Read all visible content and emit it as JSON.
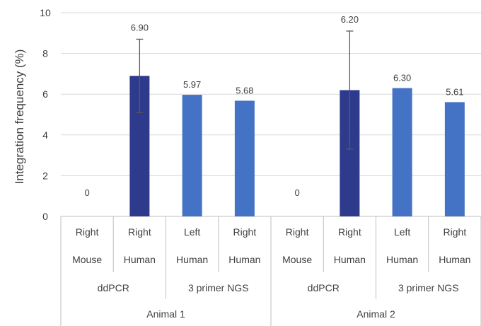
{
  "chart_data": {
    "type": "bar",
    "ylabel": "Integration frequency (%)",
    "ylim": [
      0,
      10
    ],
    "yticks": [
      "0",
      "2",
      "4",
      "6",
      "8",
      "10"
    ],
    "grid": true,
    "categories": [
      {
        "side": "Right",
        "species": "Mouse",
        "method": "ddPCR",
        "animal": "Animal 1",
        "value": 0,
        "label": "0",
        "err": null,
        "color": "#4472c4"
      },
      {
        "side": "Right",
        "species": "Human",
        "method": "ddPCR",
        "animal": "Animal 1",
        "value": 6.9,
        "label": "6.90",
        "err": [
          5.1,
          8.7
        ],
        "color": "#2e3a8c"
      },
      {
        "side": "Left",
        "species": "Human",
        "method": "3 primer NGS",
        "animal": "Animal 1",
        "value": 5.97,
        "label": "5.97",
        "err": null,
        "color": "#4472c4"
      },
      {
        "side": "Right",
        "species": "Human",
        "method": "3 primer NGS",
        "animal": "Animal 1",
        "value": 5.68,
        "label": "5.68",
        "err": null,
        "color": "#4472c4"
      },
      {
        "side": "Right",
        "species": "Mouse",
        "method": "ddPCR",
        "animal": "Animal 2",
        "value": 0,
        "label": "0",
        "err": null,
        "color": "#4472c4"
      },
      {
        "side": "Right",
        "species": "Human",
        "method": "ddPCR",
        "animal": "Animal 2",
        "value": 6.2,
        "label": "6.20",
        "err": [
          3.3,
          9.1
        ],
        "color": "#2e3a8c"
      },
      {
        "side": "Left",
        "species": "Human",
        "method": "3 primer NGS",
        "animal": "Animal 2",
        "value": 6.3,
        "label": "6.30",
        "err": null,
        "color": "#4472c4"
      },
      {
        "side": "Right",
        "species": "Human",
        "method": "3 primer NGS",
        "animal": "Animal 2",
        "value": 5.61,
        "label": "5.61",
        "err": null,
        "color": "#4472c4"
      }
    ],
    "method_groups": [
      "ddPCR",
      "3 primer NGS",
      "ddPCR",
      "3 primer NGS"
    ],
    "animal_groups": [
      "Animal 1",
      "Animal 2"
    ]
  }
}
